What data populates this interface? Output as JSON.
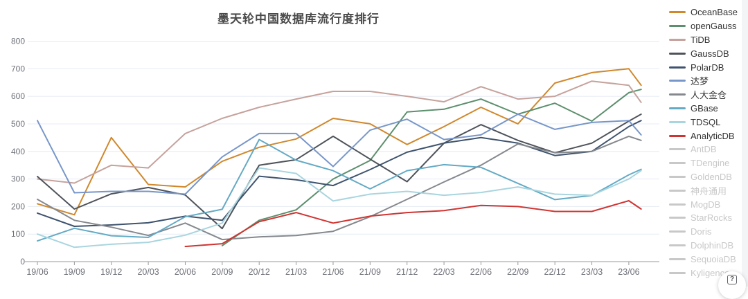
{
  "title": "墨天轮中国数据库流行度排行",
  "help_button": {
    "icon": "?"
  },
  "style": {
    "grid_color": "#e4ebf4",
    "axis_line_color": "#999999",
    "axis_label_color": "#6e7079",
    "title_color": "#4a4a4a",
    "inactive_color": "#c8c8c8",
    "background": "#ffffff"
  },
  "chart_data": {
    "type": "line",
    "title": "墨天轮中国数据库流行度排行",
    "xlabel": "",
    "ylabel": "",
    "ylim": [
      0,
      800
    ],
    "y_ticks": [
      0,
      100,
      200,
      300,
      400,
      500,
      600,
      700,
      800
    ],
    "grid": true,
    "legend_position": "right",
    "x_tick_labels": [
      "19/06",
      "19/09",
      "19/12",
      "20/03",
      "20/06",
      "20/09",
      "20/12",
      "21/03",
      "21/06",
      "21/09",
      "21/12",
      "22/03",
      "22/06",
      "22/09",
      "22/12",
      "23/03",
      "23/06"
    ],
    "x_tick_months": [
      0,
      3,
      6,
      9,
      12,
      15,
      18,
      21,
      24,
      27,
      30,
      33,
      36,
      39,
      42,
      45,
      48
    ],
    "x_months": [
      0,
      3,
      6,
      9,
      12,
      15,
      18,
      21,
      24,
      27,
      30,
      33,
      36,
      39,
      42,
      45,
      48,
      49
    ],
    "series": [
      {
        "name": "OceanBase",
        "color": "#d0882b",
        "selected": true,
        "values": [
          210,
          170,
          450,
          280,
          271,
          364,
          415,
          445,
          520,
          500,
          425,
          490,
          560,
          500,
          648,
          686,
          700,
          640
        ]
      },
      {
        "name": "openGauss",
        "color": "#5c8f6d",
        "selected": true,
        "values": [
          null,
          null,
          null,
          null,
          null,
          58,
          150,
          188,
          300,
          367,
          543,
          553,
          590,
          535,
          575,
          510,
          613,
          625
        ]
      },
      {
        "name": "TiDB",
        "color": "#c6a29c",
        "selected": true,
        "values": [
          300,
          285,
          350,
          340,
          465,
          520,
          560,
          590,
          618,
          618,
          600,
          580,
          635,
          590,
          600,
          655,
          640,
          578
        ]
      },
      {
        "name": "GaussDB",
        "color": "#4e535a",
        "selected": true,
        "values": [
          309,
          191,
          246,
          269,
          242,
          120,
          350,
          370,
          455,
          372,
          290,
          430,
          497,
          440,
          395,
          430,
          510,
          535
        ]
      },
      {
        "name": "PolarDB",
        "color": "#3f536e",
        "selected": true,
        "values": [
          176,
          128,
          133,
          141,
          165,
          150,
          310,
          297,
          276,
          334,
          397,
          430,
          450,
          430,
          385,
          400,
          490,
          512
        ]
      },
      {
        "name": "达梦",
        "color": "#7796c9",
        "selected": true,
        "values": [
          512,
          250,
          255,
          255,
          245,
          380,
          465,
          465,
          345,
          477,
          517,
          443,
          460,
          535,
          480,
          505,
          512,
          460
        ]
      },
      {
        "name": "人大金仓",
        "color": "#85888d",
        "selected": true,
        "values": [
          226,
          150,
          125,
          95,
          140,
          80,
          90,
          95,
          110,
          163,
          226,
          289,
          350,
          427,
          395,
          400,
          455,
          440
        ]
      },
      {
        "name": "GBase",
        "color": "#63aac5",
        "selected": true,
        "values": [
          75,
          121,
          94,
          88,
          163,
          190,
          443,
          368,
          330,
          264,
          330,
          352,
          342,
          284,
          225,
          240,
          315,
          335
        ]
      },
      {
        "name": "TDSQL",
        "color": "#a9d5df",
        "selected": true,
        "values": [
          100,
          52,
          63,
          70,
          96,
          140,
          340,
          320,
          220,
          245,
          255,
          241,
          251,
          271,
          245,
          241,
          300,
          330
        ]
      },
      {
        "name": "AnalyticDB",
        "color": "#d03431",
        "selected": true,
        "values": [
          null,
          null,
          null,
          null,
          55,
          65,
          145,
          178,
          140,
          165,
          178,
          185,
          204,
          200,
          182,
          182,
          221,
          191
        ]
      },
      {
        "name": "AntDB",
        "color": "#c8c8c8",
        "selected": false,
        "values": null
      },
      {
        "name": "TDengine",
        "color": "#c8c8c8",
        "selected": false,
        "values": null
      },
      {
        "name": "GoldenDB",
        "color": "#c8c8c8",
        "selected": false,
        "values": null
      },
      {
        "name": "神舟通用",
        "color": "#c8c8c8",
        "selected": false,
        "values": null
      },
      {
        "name": "MogDB",
        "color": "#c8c8c8",
        "selected": false,
        "values": null
      },
      {
        "name": "StarRocks",
        "color": "#c8c8c8",
        "selected": false,
        "values": null
      },
      {
        "name": "Doris",
        "color": "#c8c8c8",
        "selected": false,
        "values": null
      },
      {
        "name": "DolphinDB",
        "color": "#c8c8c8",
        "selected": false,
        "values": null
      },
      {
        "name": "SequoiaDB",
        "color": "#c8c8c8",
        "selected": false,
        "values": null
      },
      {
        "name": "Kyligence",
        "color": "#c8c8c8",
        "selected": false,
        "values": null
      }
    ]
  }
}
